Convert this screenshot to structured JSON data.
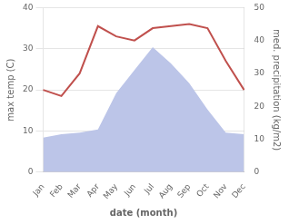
{
  "chart_data": {
    "type": "line",
    "categories": [
      "Jan",
      "Feb",
      "Mar",
      "Apr",
      "May",
      "Jun",
      "Jul",
      "Aug",
      "Sep",
      "Oct",
      "Nov",
      "Dec"
    ],
    "xlabel": "date (month)",
    "ylabel": "max temp (C)",
    "y2label": "med. precipitation (kg/m2)",
    "series": [
      {
        "type": "area",
        "color": "#bcc5e8",
        "axis": "y2",
        "values": [
          10.5,
          11.5,
          12,
          13,
          24,
          31,
          38,
          33,
          27,
          19,
          12,
          11.5
        ]
      },
      {
        "type": "line",
        "color": "#c0504d",
        "values": [
          20,
          18.5,
          24,
          35.5,
          33,
          32,
          35,
          35.5,
          36,
          35,
          27,
          20
        ]
      }
    ],
    "ylim": [
      0,
      40
    ],
    "yticks": [
      0,
      10,
      20,
      30,
      40
    ],
    "y2lim": [
      0,
      50
    ],
    "y2ticks": [
      0,
      10,
      20,
      30,
      40,
      50
    ],
    "grid": true
  }
}
